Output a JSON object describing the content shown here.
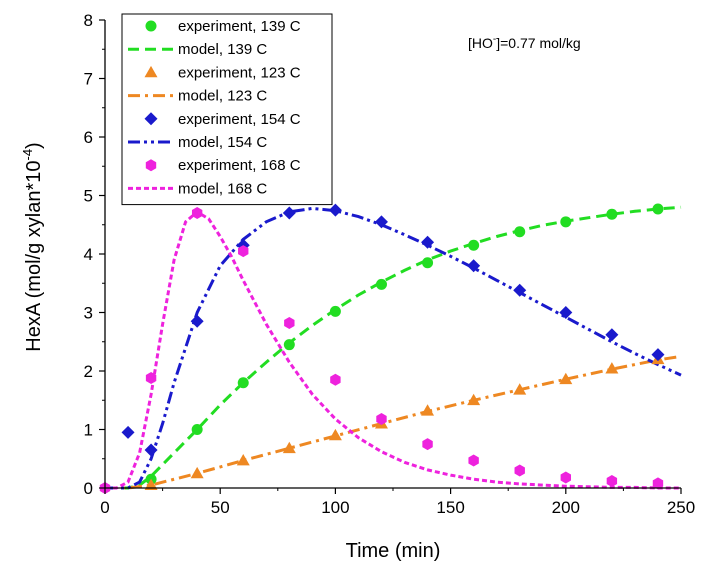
{
  "chart_data": {
    "type": "scatter",
    "title": "",
    "xlabel": "Time (min)",
    "ylabel": "HexA (mol/g xylan*10",
    "ylabel_sup": "-4",
    "ylabel_close": ")",
    "xlim": [
      0,
      250
    ],
    "ylim": [
      0,
      8
    ],
    "xticks": [
      0,
      50,
      100,
      150,
      200,
      250
    ],
    "yticks": [
      0,
      1,
      2,
      3,
      4,
      5,
      6,
      7,
      8
    ],
    "annotation": {
      "prefix": "[HO",
      "sup": "-",
      "suffix": "]=0.77 mol/kg"
    },
    "legend_position": "top-left",
    "series": [
      {
        "name": "experiment, 139 C",
        "kind": "experiment",
        "marker": "circle",
        "color": "#22dd22",
        "x": [
          20,
          40,
          60,
          80,
          100,
          120,
          140,
          160,
          180,
          200,
          220,
          240
        ],
        "y": [
          0.15,
          1.0,
          1.8,
          2.45,
          3.02,
          3.48,
          3.85,
          4.15,
          4.38,
          4.55,
          4.68,
          4.77
        ]
      },
      {
        "name": "model, 139 C",
        "kind": "model",
        "dash": "dash",
        "color": "#22dd22",
        "x": [
          0,
          10,
          15,
          20,
          30,
          40,
          50,
          60,
          70,
          80,
          90,
          100,
          110,
          120,
          130,
          140,
          150,
          160,
          170,
          180,
          190,
          200,
          210,
          220,
          230,
          240,
          250
        ],
        "y": [
          0,
          0,
          0.05,
          0.2,
          0.6,
          1.0,
          1.42,
          1.8,
          2.15,
          2.48,
          2.78,
          3.05,
          3.3,
          3.52,
          3.72,
          3.9,
          4.05,
          4.18,
          4.3,
          4.4,
          4.49,
          4.56,
          4.62,
          4.68,
          4.73,
          4.77,
          4.8
        ]
      },
      {
        "name": "experiment, 123 C",
        "kind": "experiment",
        "marker": "triangle",
        "color": "#ee8822",
        "x": [
          20,
          40,
          60,
          80,
          100,
          120,
          140,
          160,
          180,
          200,
          220,
          240
        ],
        "y": [
          0.05,
          0.25,
          0.47,
          0.68,
          0.9,
          1.1,
          1.32,
          1.5,
          1.68,
          1.86,
          2.04,
          2.2
        ]
      },
      {
        "name": "model, 123 C",
        "kind": "model",
        "dash": "dashdot",
        "color": "#ee8822",
        "x": [
          0,
          10,
          20,
          40,
          60,
          80,
          100,
          120,
          140,
          160,
          180,
          200,
          220,
          240,
          250
        ],
        "y": [
          0,
          0,
          0.05,
          0.25,
          0.47,
          0.68,
          0.89,
          1.1,
          1.31,
          1.5,
          1.68,
          1.86,
          2.03,
          2.19,
          2.25
        ]
      },
      {
        "name": "experiment, 154 C",
        "kind": "experiment",
        "marker": "diamond",
        "color": "#1a1acc",
        "x": [
          10,
          20,
          40,
          60,
          80,
          100,
          120,
          140,
          160,
          180,
          200,
          220,
          240
        ],
        "y": [
          0.95,
          0.65,
          2.85,
          4.15,
          4.7,
          4.75,
          4.55,
          4.2,
          3.8,
          3.38,
          3.0,
          2.62,
          2.28
        ]
      },
      {
        "name": "model, 154 C",
        "kind": "model",
        "dash": "dashdotdot",
        "color": "#1a1acc",
        "x": [
          0,
          10,
          15,
          20,
          25,
          30,
          40,
          50,
          60,
          70,
          80,
          90,
          100,
          110,
          120,
          130,
          140,
          150,
          160,
          170,
          180,
          190,
          200,
          210,
          220,
          230,
          240,
          250
        ],
        "y": [
          0,
          0,
          0.1,
          0.5,
          1.1,
          1.8,
          3.0,
          3.8,
          4.25,
          4.55,
          4.72,
          4.78,
          4.74,
          4.64,
          4.5,
          4.33,
          4.15,
          3.96,
          3.76,
          3.55,
          3.34,
          3.13,
          2.92,
          2.71,
          2.5,
          2.3,
          2.11,
          1.93
        ]
      },
      {
        "name": "experiment, 168 C",
        "kind": "experiment",
        "marker": "hexagon",
        "color": "#ee22dd",
        "x": [
          0,
          20,
          40,
          60,
          80,
          100,
          120,
          140,
          160,
          180,
          200,
          220,
          240
        ],
        "y": [
          0.0,
          1.88,
          4.7,
          4.05,
          2.82,
          1.85,
          1.18,
          0.75,
          0.47,
          0.3,
          0.18,
          0.12,
          0.08
        ]
      },
      {
        "name": "model, 168 C",
        "kind": "model",
        "dash": "shortdash",
        "color": "#ee22dd",
        "x": [
          0,
          5,
          10,
          15,
          20,
          25,
          30,
          35,
          40,
          45,
          50,
          55,
          60,
          70,
          80,
          90,
          100,
          110,
          120,
          130,
          140,
          150,
          160,
          170,
          180,
          190,
          200,
          210,
          220,
          230,
          240,
          250
        ],
        "y": [
          0,
          0,
          0.1,
          0.6,
          1.6,
          2.8,
          3.9,
          4.55,
          4.72,
          4.6,
          4.3,
          3.95,
          3.55,
          2.8,
          2.15,
          1.6,
          1.18,
          0.86,
          0.62,
          0.44,
          0.31,
          0.22,
          0.15,
          0.1,
          0.07,
          0.05,
          0.03,
          0.02,
          0.01,
          0.01,
          0.0,
          0.0
        ]
      }
    ]
  }
}
